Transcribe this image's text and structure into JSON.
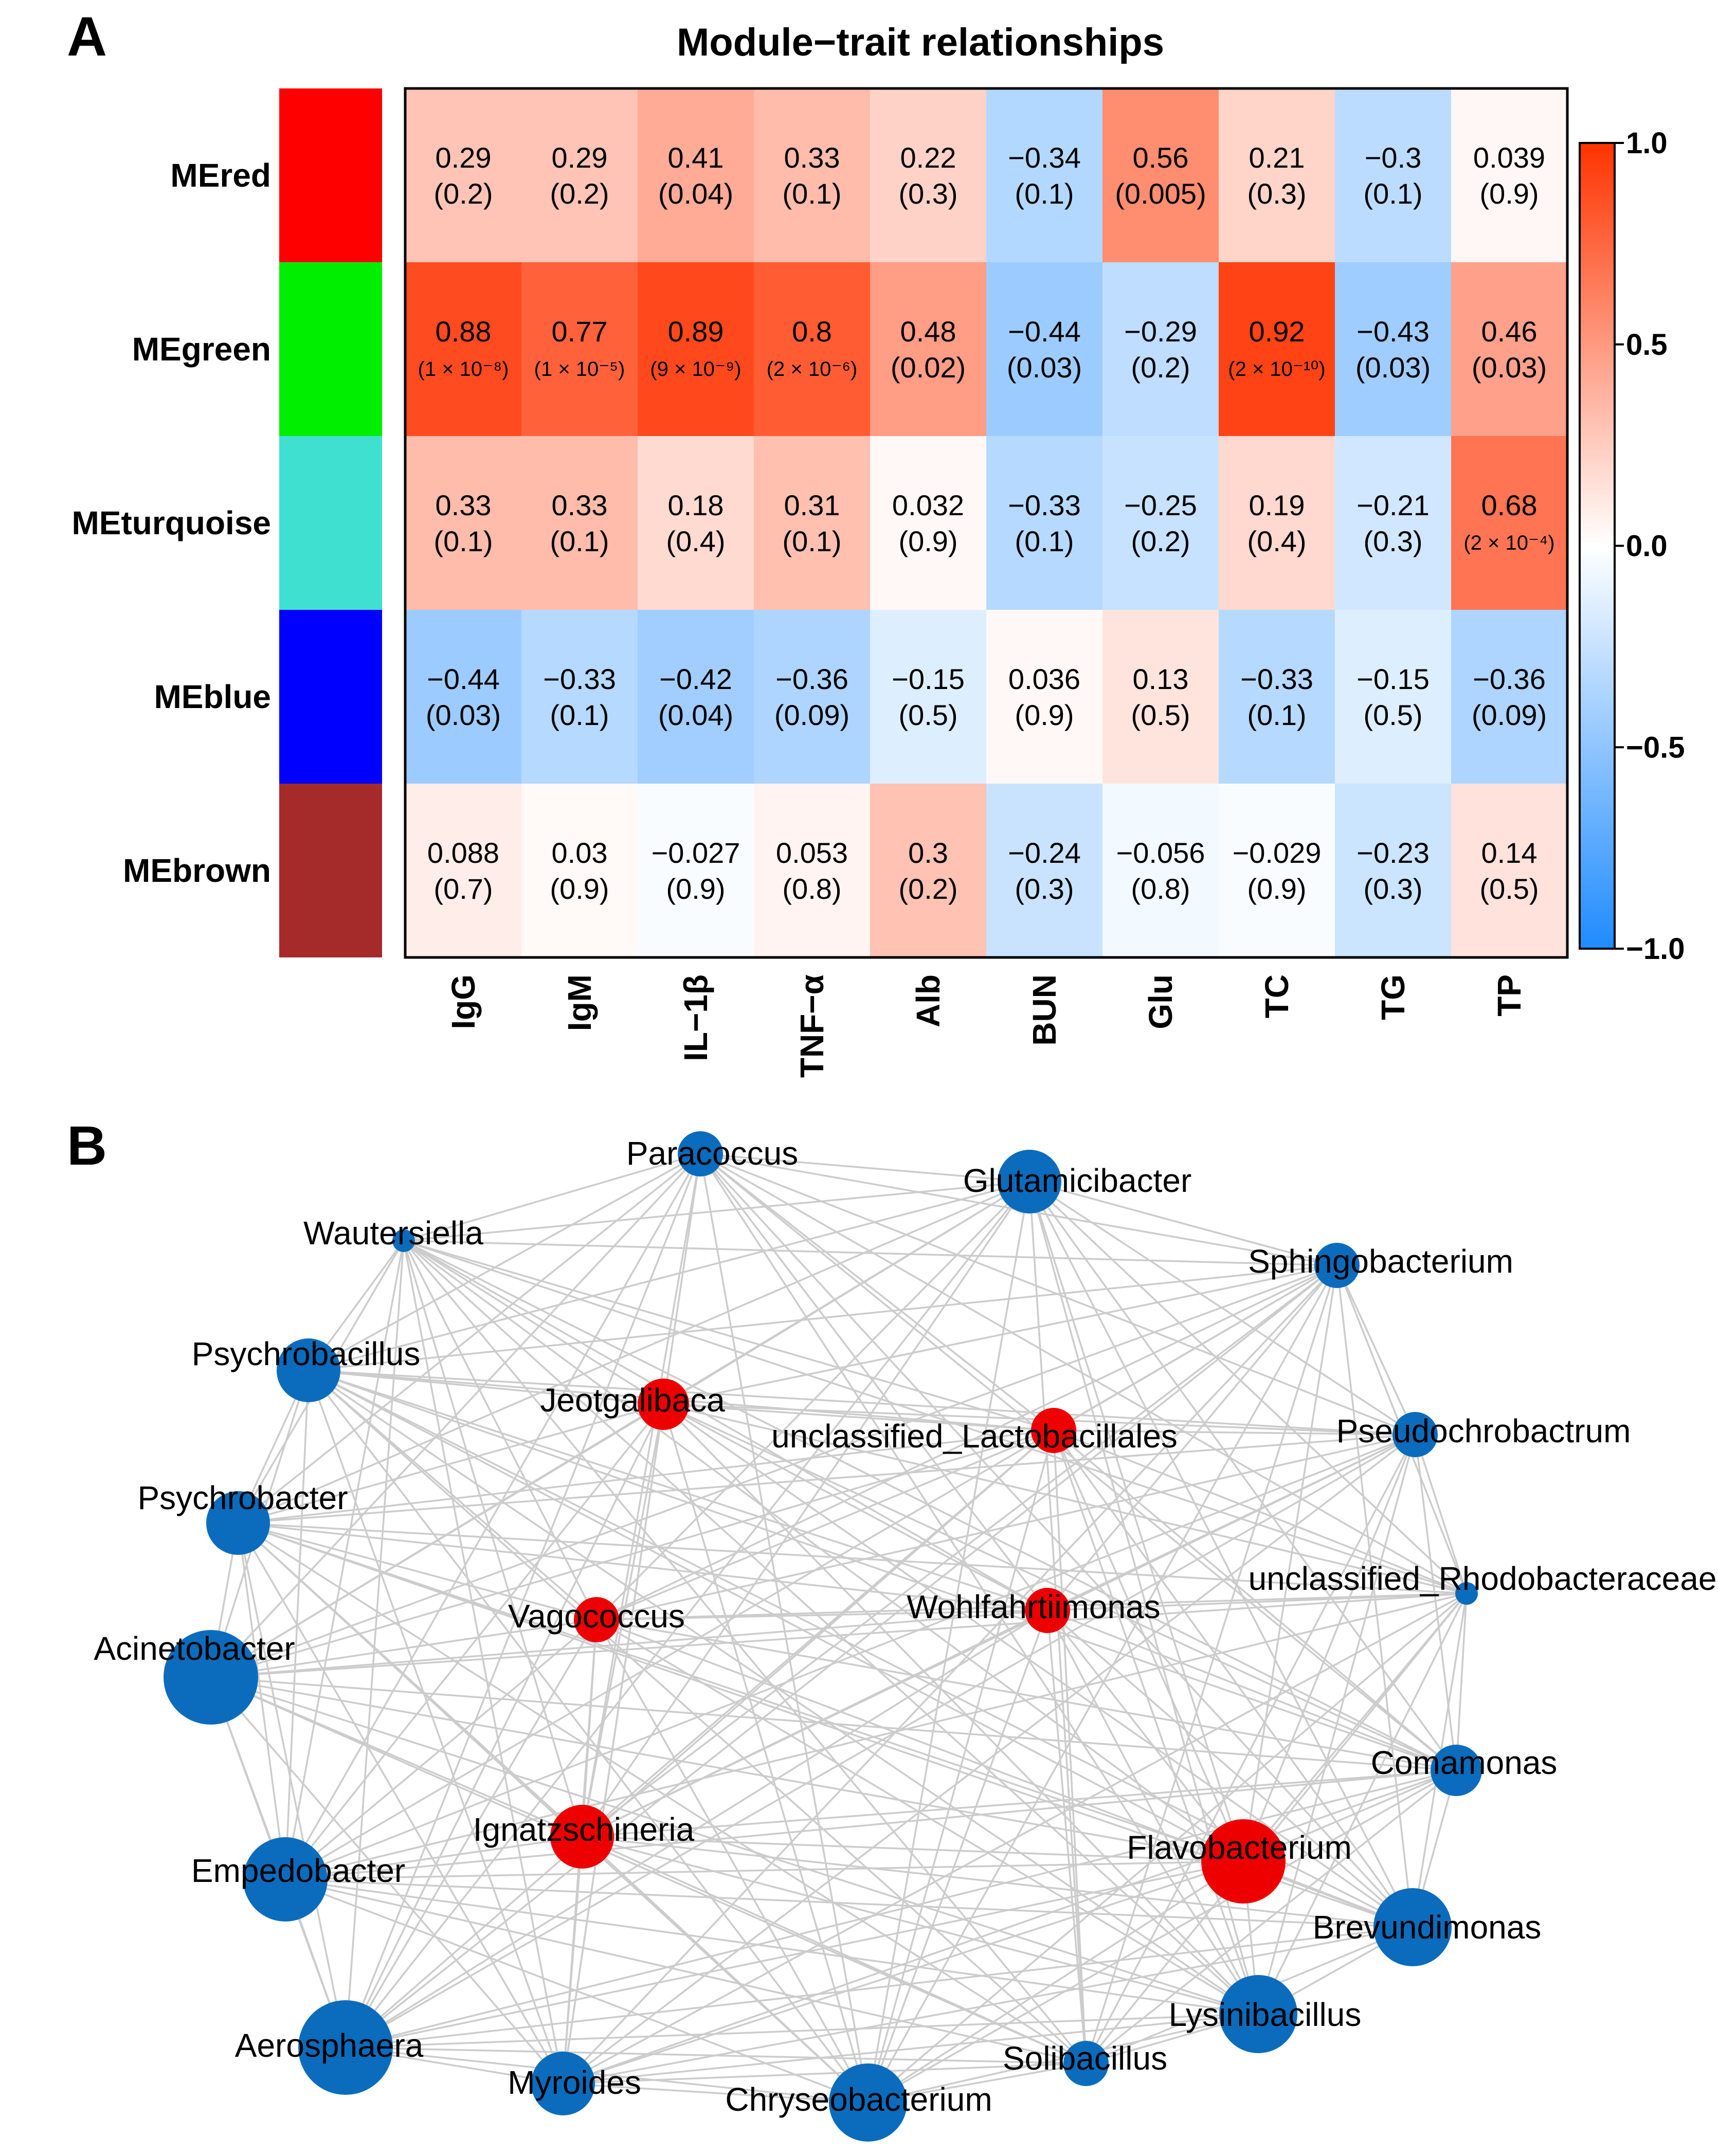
{
  "panel_a_label": "A",
  "panel_b_label": "B",
  "colors": {
    "positive": "#ff3300",
    "negative": "#1f8bff",
    "neutral": "#ffffff",
    "edge": "#cccccc",
    "node_blue": "#0b6cbd",
    "node_red": "#ee0000"
  },
  "chart_data": [
    {
      "type": "heatmap",
      "title": "Module−trait relationships",
      "rows": [
        "MEred",
        "MEgreen",
        "MEturquoise",
        "MEblue",
        "MEbrown"
      ],
      "row_colors": [
        "#ff0000",
        "#00ee00",
        "#40e0d0",
        "#0000ff",
        "#a52a2a"
      ],
      "columns": [
        "IgG",
        "IgM",
        "IL−1β",
        "TNF−α",
        "Alb",
        "BUN",
        "Glu",
        "TC",
        "TG",
        "TP"
      ],
      "values": [
        [
          0.29,
          0.29,
          0.41,
          0.33,
          0.22,
          -0.34,
          0.56,
          0.21,
          -0.3,
          0.039
        ],
        [
          0.88,
          0.77,
          0.89,
          0.8,
          0.48,
          -0.44,
          -0.29,
          0.92,
          -0.43,
          0.46
        ],
        [
          0.33,
          0.33,
          0.18,
          0.31,
          0.032,
          -0.33,
          -0.25,
          0.19,
          -0.21,
          0.68
        ],
        [
          -0.44,
          -0.33,
          -0.42,
          -0.36,
          -0.15,
          0.036,
          0.13,
          -0.33,
          -0.15,
          -0.36
        ],
        [
          0.088,
          0.03,
          -0.027,
          0.053,
          0.3,
          -0.24,
          -0.056,
          -0.029,
          -0.23,
          0.14
        ]
      ],
      "value_labels": [
        [
          "0.29",
          "0.29",
          "0.41",
          "0.33",
          "0.22",
          "−0.34",
          "0.56",
          "0.21",
          "−0.3",
          "0.039"
        ],
        [
          "0.88",
          "0.77",
          "0.89",
          "0.8",
          "0.48",
          "−0.44",
          "−0.29",
          "0.92",
          "−0.43",
          "0.46"
        ],
        [
          "0.33",
          "0.33",
          "0.18",
          "0.31",
          "0.032",
          "−0.33",
          "−0.25",
          "0.19",
          "−0.21",
          "0.68"
        ],
        [
          "−0.44",
          "−0.33",
          "−0.42",
          "−0.36",
          "−0.15",
          "0.036",
          "0.13",
          "−0.33",
          "−0.15",
          "−0.36"
        ],
        [
          "0.088",
          "0.03",
          "−0.027",
          "0.053",
          "0.3",
          "−0.24",
          "−0.056",
          "−0.029",
          "−0.23",
          "0.14"
        ]
      ],
      "p_values": [
        [
          "(0.2)",
          "(0.2)",
          "(0.04)",
          "(0.1)",
          "(0.3)",
          "(0.1)",
          "(0.005)",
          "(0.3)",
          "(0.1)",
          "(0.9)"
        ],
        [
          "(1 × 10⁻⁸)",
          "(1 × 10⁻⁵)",
          "(9 × 10⁻⁹)",
          "(2 × 10⁻⁶)",
          "(0.02)",
          "(0.03)",
          "(0.2)",
          "(2 × 10⁻¹⁰)",
          "(0.03)",
          "(0.03)"
        ],
        [
          "(0.1)",
          "(0.1)",
          "(0.4)",
          "(0.1)",
          "(0.9)",
          "(0.1)",
          "(0.2)",
          "(0.4)",
          "(0.3)",
          "(2 × 10⁻⁴)"
        ],
        [
          "(0.03)",
          "(0.1)",
          "(0.04)",
          "(0.09)",
          "(0.5)",
          "(0.9)",
          "(0.5)",
          "(0.1)",
          "(0.5)",
          "(0.09)"
        ],
        [
          "(0.7)",
          "(0.9)",
          "(0.9)",
          "(0.8)",
          "(0.2)",
          "(0.3)",
          "(0.8)",
          "(0.9)",
          "(0.3)",
          "(0.5)"
        ]
      ],
      "color_scale": {
        "min": -1.0,
        "max": 1.0,
        "ticks": [
          "1.0",
          "0.5",
          "0.0",
          "−0.5",
          "−1.0"
        ],
        "tick_values": [
          1.0,
          0.5,
          0.0,
          -0.5,
          -1.0
        ]
      }
    },
    {
      "type": "network",
      "nodes": [
        {
          "name": "Paracoccus",
          "group": "blue",
          "size": 2
        },
        {
          "name": "Glutamicibacter",
          "group": "blue",
          "size": 4
        },
        {
          "name": "Wautersiella",
          "group": "blue",
          "size": 1
        },
        {
          "name": "Sphingobacterium",
          "group": "blue",
          "size": 2
        },
        {
          "name": "Psychrobacillus",
          "group": "blue",
          "size": 4
        },
        {
          "name": "Jeotgalibaca",
          "group": "red",
          "size": 3
        },
        {
          "name": "unclassified_Lactobacillales",
          "group": "red",
          "size": 2
        },
        {
          "name": "Pseudochrobactrum",
          "group": "blue",
          "size": 2
        },
        {
          "name": "Psychrobacter",
          "group": "blue",
          "size": 4
        },
        {
          "name": "unclassified_Rhodobacteraceae",
          "group": "blue",
          "size": 1
        },
        {
          "name": "Vagococcus",
          "group": "red",
          "size": 2
        },
        {
          "name": "Wohlfahrtiimonas",
          "group": "red",
          "size": 2
        },
        {
          "name": "Acinetobacter",
          "group": "blue",
          "size": 7
        },
        {
          "name": "Comamonas",
          "group": "blue",
          "size": 3
        },
        {
          "name": "Ignatzschineria",
          "group": "red",
          "size": 4
        },
        {
          "name": "Flavobacterium",
          "group": "red",
          "size": 6
        },
        {
          "name": "Empedobacter",
          "group": "blue",
          "size": 6
        },
        {
          "name": "Brevundimonas",
          "group": "blue",
          "size": 5
        },
        {
          "name": "Lysinibacillus",
          "group": "blue",
          "size": 5
        },
        {
          "name": "Aerosphaera",
          "group": "blue",
          "size": 7
        },
        {
          "name": "Solibacillus",
          "group": "blue",
          "size": 2
        },
        {
          "name": "Myroides",
          "group": "blue",
          "size": 4
        },
        {
          "name": "Chryseobacterium",
          "group": "blue",
          "size": 5
        }
      ]
    }
  ]
}
